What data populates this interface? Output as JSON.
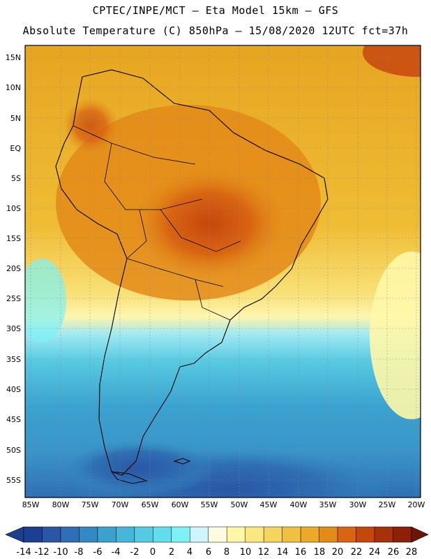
{
  "header": {
    "line1": "CPTEC/INPE/MCT –  Eta Model 15km – GFS",
    "line2": "Absolute Temperature (C) 850hPa – 15/08/2020 12UTC fct=37h"
  },
  "map": {
    "lat_labels": [
      "15N",
      "10N",
      "5N",
      "EQ",
      "5S",
      "10S",
      "15S",
      "20S",
      "25S",
      "30S",
      "35S",
      "40S",
      "45S",
      "50S",
      "55S"
    ],
    "lon_labels": [
      "85W",
      "80W",
      "75W",
      "70W",
      "65W",
      "60W",
      "55W",
      "50W",
      "45W",
      "40W",
      "35W",
      "30W",
      "25W",
      "20W"
    ],
    "grid": "dotted",
    "coastlines": true,
    "country_borders": true
  },
  "colorbar": {
    "labels": [
      "-14",
      "-12",
      "-10",
      "-8",
      "-6",
      "-4",
      "-2",
      "0",
      "2",
      "4",
      "6",
      "8",
      "10",
      "12",
      "14",
      "16",
      "18",
      "20",
      "22",
      "24",
      "26",
      "28"
    ],
    "colors": [
      "#1b3f91",
      "#2a56a5",
      "#2f6fb3",
      "#3589c3",
      "#3ba2cf",
      "#45b8da",
      "#52cbe3",
      "#62dded",
      "#7cf2f7",
      "#cdf5fb",
      "#fffbe3",
      "#fff7a8",
      "#fbe780",
      "#f6d45e",
      "#f0c040",
      "#ebab28",
      "#e38a17",
      "#d96512",
      "#c5470e",
      "#a8300a",
      "#8c2108",
      "#6e1605"
    ]
  }
}
